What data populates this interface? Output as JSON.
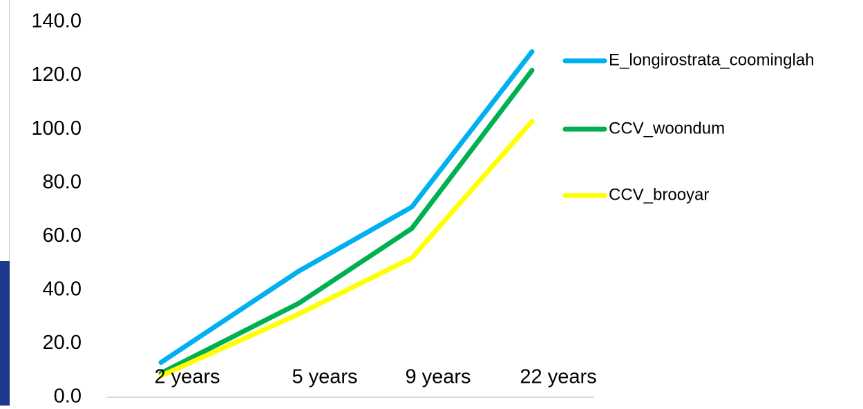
{
  "colors": {
    "background": "#ffffff",
    "axis_line": "#d9d9d9",
    "tick_text": "#000000",
    "side_strip": "#1b3a8c"
  },
  "chart_data": {
    "type": "line",
    "title": "",
    "xlabel": "",
    "ylabel": "",
    "categories": [
      "2 years",
      "5 years",
      "9 years",
      "22 years"
    ],
    "y_ticks": [
      "0.0",
      "20.0",
      "40.0",
      "60.0",
      "80.0",
      "100.0",
      "120.0",
      "140.0"
    ],
    "ylim": [
      0,
      140
    ],
    "grid": false,
    "legend_position": "right",
    "series": [
      {
        "name": "E_longirostrata_coominglah",
        "color": "#00b0f0",
        "values": [
          13,
          47,
          71,
          129
        ]
      },
      {
        "name": "CCV_woondum",
        "color": "#00b050",
        "values": [
          9,
          35,
          63,
          122
        ]
      },
      {
        "name": "CCV_brooyar",
        "color": "#ffff00",
        "values": [
          8,
          31,
          52,
          103
        ]
      }
    ]
  }
}
